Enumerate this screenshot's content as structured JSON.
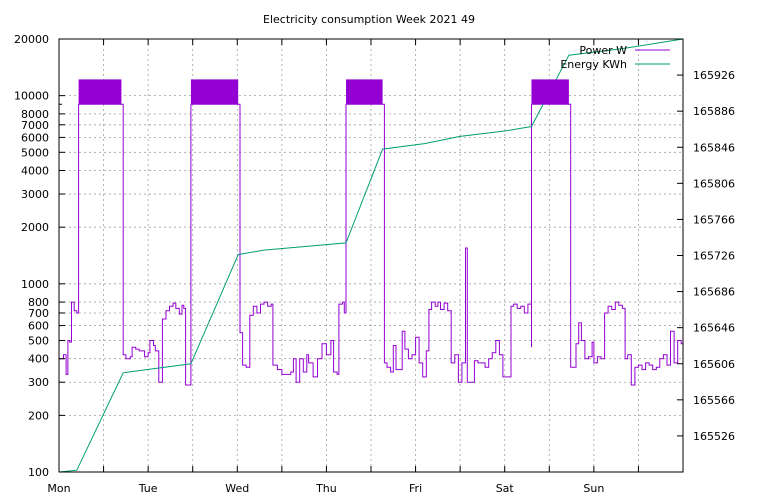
{
  "chart_data": {
    "type": "line",
    "title": "Electricity consumption Week 2021 49",
    "x_axis": {
      "labels": [
        "Mon",
        "Tue",
        "Wed",
        "Thu",
        "Fri",
        "Sat",
        "Sun"
      ],
      "range_days": [
        0,
        7
      ]
    },
    "y_axis_left": {
      "scale": "log",
      "range": [
        100,
        20000
      ],
      "ticks": [
        "100",
        "200",
        "300",
        "400",
        "500",
        "600",
        "700",
        "800",
        "1000",
        "2000",
        "3000",
        "4000",
        "5000",
        "6000",
        "7000",
        "8000",
        "10000",
        "20000"
      ]
    },
    "y_axis_right": {
      "scale": "linear",
      "range": [
        165486,
        165966
      ],
      "ticks": [
        "165526",
        "165566",
        "165606",
        "165646",
        "165686",
        "165726",
        "165766",
        "165806",
        "165846",
        "165886",
        "165926"
      ]
    },
    "grid": true,
    "legend_position": "top-right",
    "series": [
      {
        "name": "Power W",
        "color": "#9400d3",
        "axis": "left",
        "points": [
          [
            0.0,
            400
          ],
          [
            0.05,
            420
          ],
          [
            0.08,
            330
          ],
          [
            0.1,
            500
          ],
          [
            0.12,
            490
          ],
          [
            0.14,
            800
          ],
          [
            0.17,
            720
          ],
          [
            0.2,
            700
          ],
          [
            0.22,
            9000
          ],
          [
            0.7,
            9000
          ],
          [
            0.72,
            420
          ],
          [
            0.75,
            400
          ],
          [
            0.8,
            410
          ],
          [
            0.82,
            460
          ],
          [
            0.86,
            450
          ],
          [
            0.9,
            440
          ],
          [
            0.96,
            410
          ],
          [
            1.0,
            430
          ],
          [
            1.02,
            500
          ],
          [
            1.06,
            470
          ],
          [
            1.08,
            440
          ],
          [
            1.12,
            300
          ],
          [
            1.16,
            650
          ],
          [
            1.2,
            720
          ],
          [
            1.24,
            760
          ],
          [
            1.28,
            790
          ],
          [
            1.31,
            740
          ],
          [
            1.35,
            690
          ],
          [
            1.38,
            770
          ],
          [
            1.4,
            740
          ],
          [
            1.42,
            290
          ],
          [
            1.48,
            290
          ],
          [
            1.48,
            9000
          ],
          [
            2.01,
            9000
          ],
          [
            2.03,
            550
          ],
          [
            2.06,
            370
          ],
          [
            2.1,
            360
          ],
          [
            2.14,
            680
          ],
          [
            2.18,
            760
          ],
          [
            2.22,
            700
          ],
          [
            2.26,
            780
          ],
          [
            2.3,
            800
          ],
          [
            2.34,
            760
          ],
          [
            2.38,
            780
          ],
          [
            2.4,
            370
          ],
          [
            2.45,
            350
          ],
          [
            2.5,
            330
          ],
          [
            2.55,
            330
          ],
          [
            2.6,
            340
          ],
          [
            2.63,
            400
          ],
          [
            2.66,
            300
          ],
          [
            2.7,
            400
          ],
          [
            2.74,
            340
          ],
          [
            2.78,
            420
          ],
          [
            2.8,
            380
          ],
          [
            2.85,
            320
          ],
          [
            2.9,
            400
          ],
          [
            2.95,
            480
          ],
          [
            3.0,
            420
          ],
          [
            3.05,
            500
          ],
          [
            3.08,
            340
          ],
          [
            3.12,
            330
          ],
          [
            3.14,
            780
          ],
          [
            3.18,
            800
          ],
          [
            3.2,
            700
          ],
          [
            3.22,
            9000
          ],
          [
            3.63,
            9000
          ],
          [
            3.65,
            380
          ],
          [
            3.68,
            360
          ],
          [
            3.72,
            340
          ],
          [
            3.75,
            470
          ],
          [
            3.78,
            350
          ],
          [
            3.82,
            350
          ],
          [
            3.85,
            560
          ],
          [
            3.88,
            450
          ],
          [
            3.92,
            400
          ],
          [
            3.96,
            420
          ],
          [
            4.0,
            520
          ],
          [
            4.04,
            380
          ],
          [
            4.08,
            320
          ],
          [
            4.12,
            440
          ],
          [
            4.15,
            730
          ],
          [
            4.18,
            800
          ],
          [
            4.22,
            760
          ],
          [
            4.25,
            800
          ],
          [
            4.28,
            730
          ],
          [
            4.32,
            790
          ],
          [
            4.36,
            720
          ],
          [
            4.4,
            380
          ],
          [
            4.44,
            420
          ],
          [
            4.48,
            300
          ],
          [
            4.52,
            380
          ],
          [
            4.56,
            1550
          ],
          [
            4.58,
            300
          ],
          [
            4.62,
            300
          ],
          [
            4.66,
            390
          ],
          [
            4.7,
            380
          ],
          [
            4.74,
            380
          ],
          [
            4.78,
            360
          ],
          [
            4.82,
            400
          ],
          [
            4.86,
            430
          ],
          [
            4.9,
            500
          ],
          [
            4.94,
            420
          ],
          [
            4.98,
            320
          ],
          [
            5.03,
            320
          ],
          [
            5.07,
            760
          ],
          [
            5.1,
            780
          ],
          [
            5.14,
            740
          ],
          [
            5.18,
            760
          ],
          [
            5.22,
            700
          ],
          [
            5.26,
            780
          ],
          [
            5.3,
            460
          ],
          [
            5.3,
            9000
          ],
          [
            5.72,
            9000
          ],
          [
            5.74,
            360
          ],
          [
            5.78,
            360
          ],
          [
            5.8,
            480
          ],
          [
            5.83,
            620
          ],
          [
            5.86,
            500
          ],
          [
            5.9,
            400
          ],
          [
            5.94,
            410
          ],
          [
            5.98,
            490
          ],
          [
            6.0,
            380
          ],
          [
            6.04,
            410
          ],
          [
            6.08,
            400
          ],
          [
            6.12,
            700
          ],
          [
            6.16,
            760
          ],
          [
            6.2,
            730
          ],
          [
            6.24,
            800
          ],
          [
            6.28,
            770
          ],
          [
            6.32,
            740
          ],
          [
            6.35,
            400
          ],
          [
            6.38,
            420
          ],
          [
            6.42,
            290
          ],
          [
            6.46,
            360
          ],
          [
            6.5,
            370
          ],
          [
            6.54,
            350
          ],
          [
            6.58,
            380
          ],
          [
            6.62,
            370
          ],
          [
            6.66,
            350
          ],
          [
            6.7,
            360
          ],
          [
            6.74,
            400
          ],
          [
            6.78,
            420
          ],
          [
            6.82,
            370
          ],
          [
            6.86,
            560
          ],
          [
            6.9,
            380
          ],
          [
            6.94,
            500
          ],
          [
            6.98,
            480
          ],
          [
            7.0,
            480
          ]
        ]
      },
      {
        "name": "Energy KWh",
        "color": "#009e73",
        "axis": "right",
        "points": [
          [
            0.0,
            165486
          ],
          [
            0.2,
            165488
          ],
          [
            0.72,
            165596
          ],
          [
            1.48,
            165606
          ],
          [
            2.01,
            165727
          ],
          [
            2.3,
            165732
          ],
          [
            3.22,
            165740
          ],
          [
            3.63,
            165844
          ],
          [
            4.1,
            165850
          ],
          [
            4.5,
            165858
          ],
          [
            5.0,
            165864
          ],
          [
            5.3,
            165869
          ],
          [
            5.72,
            165948
          ],
          [
            6.3,
            165955
          ],
          [
            7.0,
            165966
          ]
        ]
      }
    ]
  }
}
